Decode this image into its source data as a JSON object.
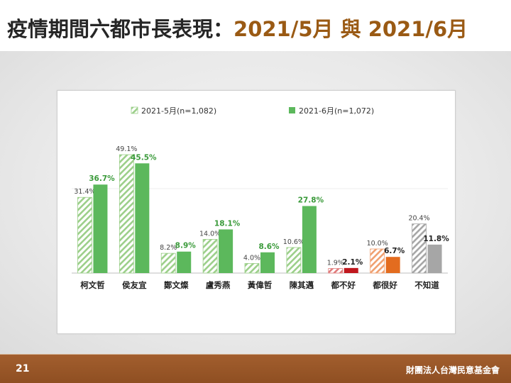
{
  "page": {
    "title_main": "疫情期間六都市長表現：",
    "title_sub": "2021/5月 與 2021/6月",
    "page_number": "21",
    "organization": "財團法人台灣民意基金會"
  },
  "colors": {
    "series1_hatch": "#9ccf8a",
    "series2_fill": "#5cb85c",
    "red_hatch": "#e07a7a",
    "red_fill": "#c0171e",
    "orange_hatch": "#f0a070",
    "orange_fill": "#e36c1f",
    "gray_hatch": "#a6a6a6",
    "gray_fill": "#a6a6a6",
    "series2_label": "#3a9a3a",
    "footer": "#9a5a2a"
  },
  "chart_data": {
    "type": "bar",
    "categories": [
      "柯文哲",
      "侯友宜",
      "鄭文燦",
      "盧秀燕",
      "黃偉哲",
      "陳其邁",
      "都不好",
      "都很好",
      "不知道"
    ],
    "series": [
      {
        "name": "2021-5月(n=1,082)",
        "values": [
          31.4,
          49.1,
          8.2,
          14.0,
          4.0,
          10.6,
          1.9,
          10.0,
          20.4
        ],
        "labels": [
          "31.4%",
          "49.1%",
          "8.2%",
          "14.0%",
          "4.0%",
          "10.6%",
          "1.9%",
          "10.0%",
          "20.4%"
        ]
      },
      {
        "name": "2021-6月(n=1,072)",
        "values": [
          36.7,
          45.5,
          8.9,
          18.1,
          8.6,
          27.8,
          2.1,
          6.7,
          11.8
        ],
        "labels": [
          "36.7%",
          "45.5%",
          "8.9%",
          "18.1%",
          "8.6%",
          "27.8%",
          "2.1%",
          "6.7%",
          "11.8%"
        ]
      }
    ],
    "ylim": [
      0,
      55
    ],
    "legend_position": "top-center",
    "gridlines": "light horizontal"
  }
}
